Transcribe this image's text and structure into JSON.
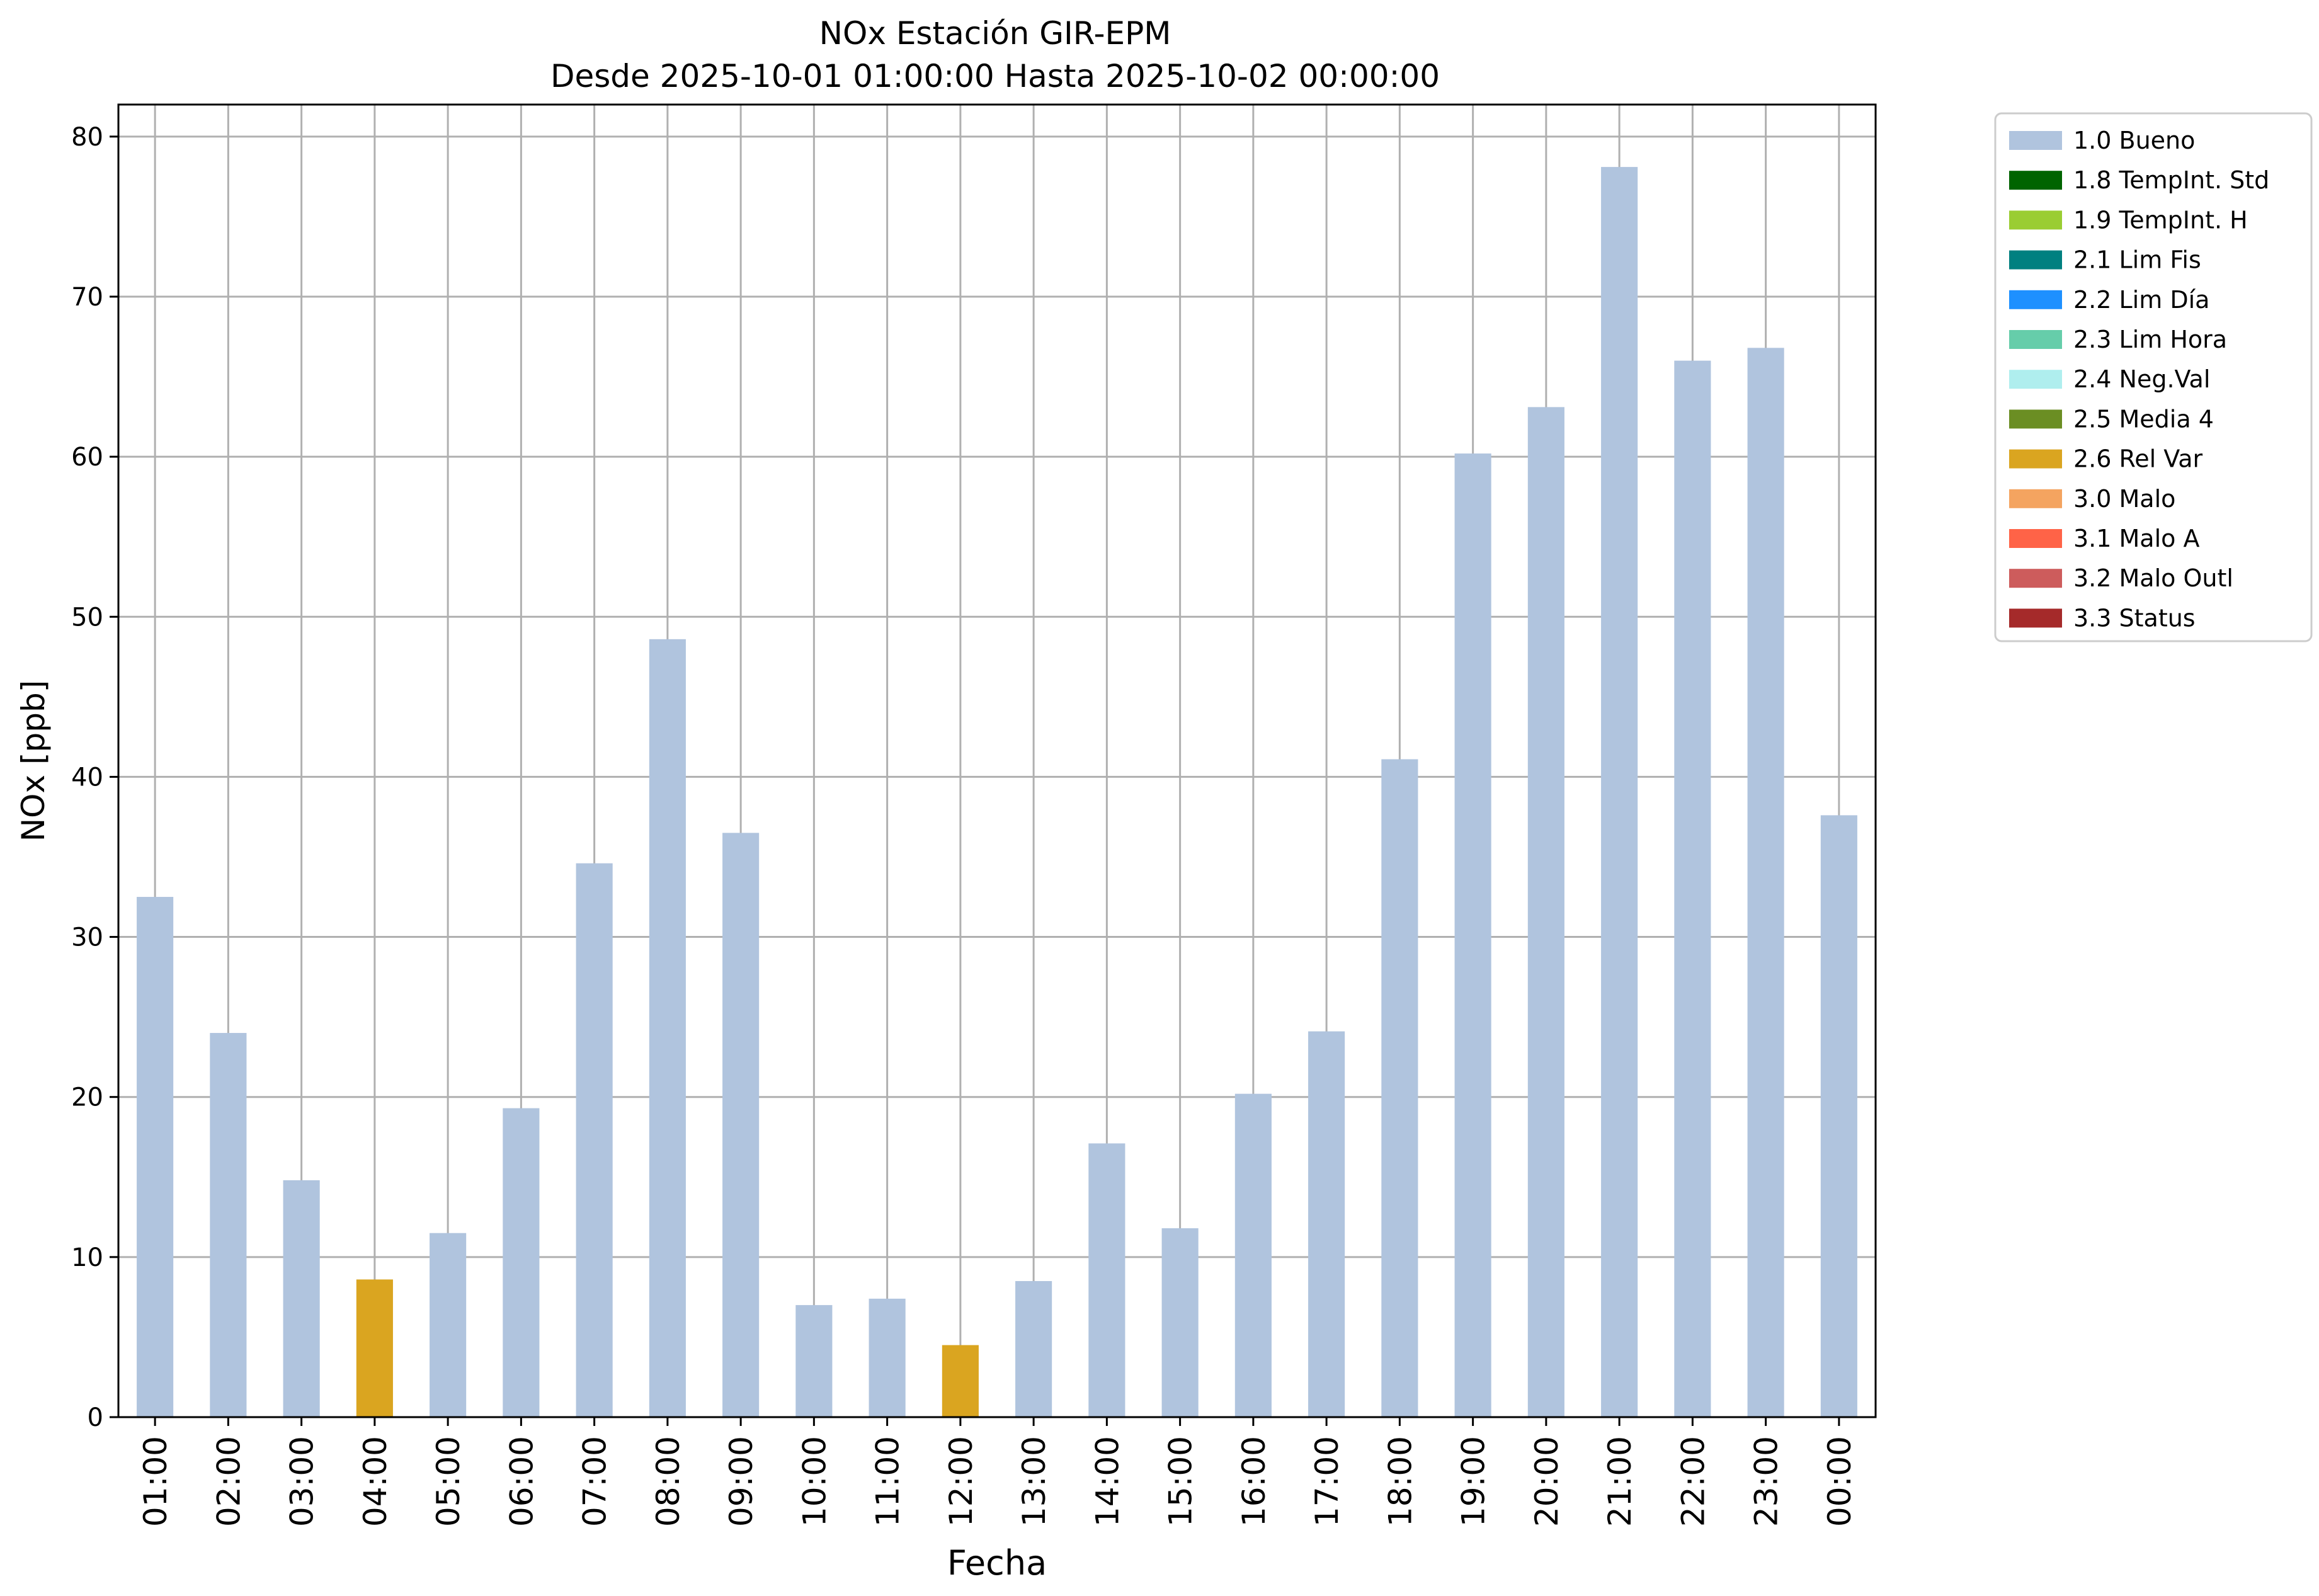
{
  "chart_data": {
    "type": "bar",
    "title": "NOx Estación GIR-EPM",
    "subtitle": "Desde 2025-10-01 01:00:00 Hasta 2025-10-02 00:00:00",
    "xlabel": "Fecha",
    "ylabel": "NOx [ppb]",
    "ylim": [
      0,
      82
    ],
    "yticks": [
      0,
      10,
      20,
      30,
      40,
      50,
      60,
      70,
      80
    ],
    "grid": true,
    "legend_position": "outside-top-right",
    "categories": [
      "01:00",
      "02:00",
      "03:00",
      "04:00",
      "05:00",
      "06:00",
      "07:00",
      "08:00",
      "09:00",
      "10:00",
      "11:00",
      "12:00",
      "13:00",
      "14:00",
      "15:00",
      "16:00",
      "17:00",
      "18:00",
      "19:00",
      "20:00",
      "21:00",
      "22:00",
      "23:00",
      "00:00"
    ],
    "values": [
      32.5,
      24.0,
      14.8,
      8.6,
      11.5,
      19.3,
      34.6,
      48.6,
      36.5,
      7.0,
      7.4,
      4.5,
      8.5,
      17.1,
      11.8,
      20.2,
      24.1,
      41.1,
      60.2,
      63.1,
      78.1,
      66.0,
      66.8,
      37.6
    ],
    "flags": [
      "1.0 Bueno",
      "1.0 Bueno",
      "1.0 Bueno",
      "2.6 Rel Var",
      "1.0 Bueno",
      "1.0 Bueno",
      "1.0 Bueno",
      "1.0 Bueno",
      "1.0 Bueno",
      "1.0 Bueno",
      "1.0 Bueno",
      "2.6 Rel Var",
      "1.0 Bueno",
      "1.0 Bueno",
      "1.0 Bueno",
      "1.0 Bueno",
      "1.0 Bueno",
      "1.0 Bueno",
      "1.0 Bueno",
      "1.0 Bueno",
      "1.0 Bueno",
      "1.0 Bueno",
      "1.0 Bueno",
      "1.0 Bueno"
    ],
    "legend": [
      {
        "label": "1.0 Bueno",
        "color": "#b0c4de"
      },
      {
        "label": "1.8 TempInt. Std",
        "color": "#006400"
      },
      {
        "label": "1.9 TempInt. H",
        "color": "#9acd32"
      },
      {
        "label": "2.1 Lim Fis",
        "color": "#008080"
      },
      {
        "label": "2.2 Lim Día",
        "color": "#1e90ff"
      },
      {
        "label": "2.3 Lim Hora",
        "color": "#66cdaa"
      },
      {
        "label": "2.4 Neg.Val",
        "color": "#afeeee"
      },
      {
        "label": "2.5 Media 4",
        "color": "#6b8e23"
      },
      {
        "label": "2.6 Rel Var",
        "color": "#daa520"
      },
      {
        "label": "3.0 Malo",
        "color": "#f4a460"
      },
      {
        "label": "3.1 Malo A",
        "color": "#ff6347"
      },
      {
        "label": "3.2 Malo Outl",
        "color": "#cd5c5c"
      },
      {
        "label": "3.3 Status",
        "color": "#a52a2a"
      }
    ]
  }
}
